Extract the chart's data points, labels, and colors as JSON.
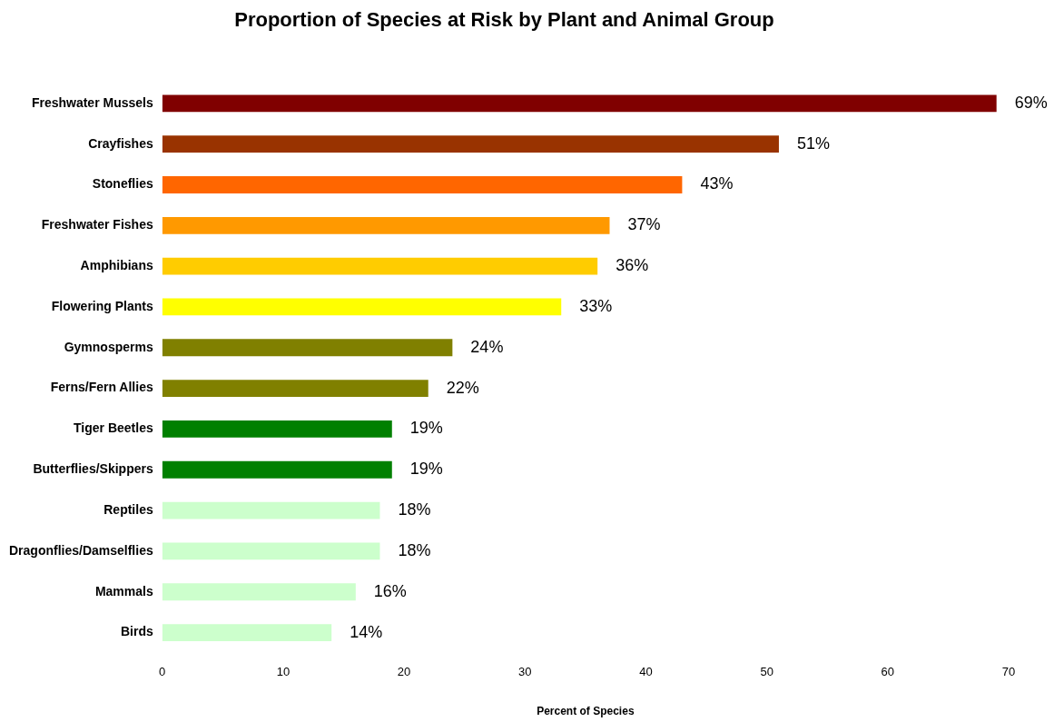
{
  "chart_data": {
    "type": "bar",
    "orientation": "horizontal",
    "title": "Proportion of Species at Risk by Plant and Animal Group",
    "xlabel": "Percent of Species",
    "categories": [
      "Freshwater Mussels",
      "Crayfishes",
      "Stoneflies",
      "Freshwater Fishes",
      "Amphibians",
      "Flowering Plants",
      "Gymnosperms",
      "Ferns/Fern Allies",
      "Tiger Beetles",
      "Butterflies/Skippers",
      "Reptiles",
      "Dragonflies/Damselflies",
      "Mammals",
      "Birds"
    ],
    "values": [
      69,
      51,
      43,
      37,
      36,
      33,
      24,
      22,
      19,
      19,
      18,
      18,
      16,
      14
    ],
    "value_labels": [
      "69%",
      "51%",
      "43%",
      "37%",
      "36%",
      "33%",
      "24%",
      "22%",
      "19%",
      "19%",
      "18%",
      "18%",
      "16%",
      "14%"
    ],
    "colors": [
      "#800000",
      "#993300",
      "#ff6600",
      "#ff9900",
      "#ffcc00",
      "#ffff00",
      "#808000",
      "#808000",
      "#008000",
      "#008000",
      "#ccffcc",
      "#ccffcc",
      "#ccffcc",
      "#ccffcc"
    ],
    "xlim": [
      0,
      70
    ],
    "xticks": [
      0,
      10,
      20,
      30,
      40,
      50,
      60,
      70
    ]
  }
}
